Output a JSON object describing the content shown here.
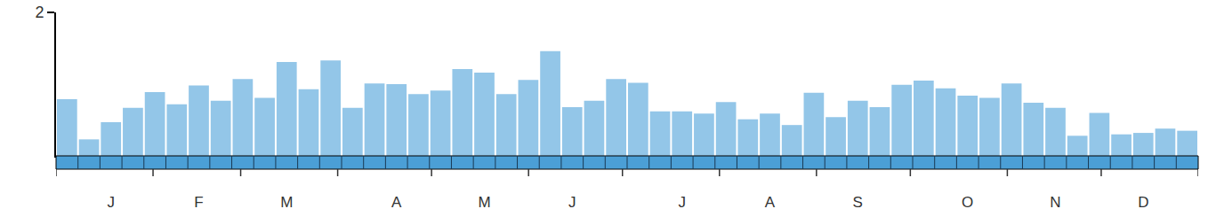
{
  "chart_data": {
    "type": "bar",
    "categories": [
      null,
      null,
      "J",
      null,
      null,
      null,
      "F",
      null,
      null,
      null,
      "M",
      null,
      null,
      null,
      null,
      "A",
      null,
      null,
      null,
      "M",
      null,
      null,
      null,
      "J",
      null,
      null,
      null,
      null,
      "J",
      null,
      null,
      null,
      "A",
      null,
      null,
      null,
      "S",
      null,
      null,
      null,
      null,
      "O",
      null,
      null,
      null,
      "N",
      null,
      null,
      null,
      "D",
      null,
      null
    ],
    "values": [
      0.79,
      0.23,
      0.47,
      0.67,
      0.89,
      0.72,
      0.98,
      0.77,
      1.07,
      0.81,
      1.31,
      0.93,
      1.33,
      0.67,
      1.01,
      1.0,
      0.86,
      0.91,
      1.21,
      1.16,
      0.86,
      1.06,
      1.46,
      0.68,
      0.77,
      1.07,
      1.02,
      0.62,
      0.62,
      0.59,
      0.75,
      0.51,
      0.59,
      0.43,
      0.88,
      0.54,
      0.77,
      0.68,
      0.99,
      1.05,
      0.94,
      0.84,
      0.81,
      1.01,
      0.74,
      0.67,
      0.28,
      0.6,
      0.3,
      0.32,
      0.38,
      0.35
    ],
    "color": "#93c6e8",
    "ylim": [
      0,
      2
    ],
    "yticks": [
      2
    ],
    "grid": false
  }
}
